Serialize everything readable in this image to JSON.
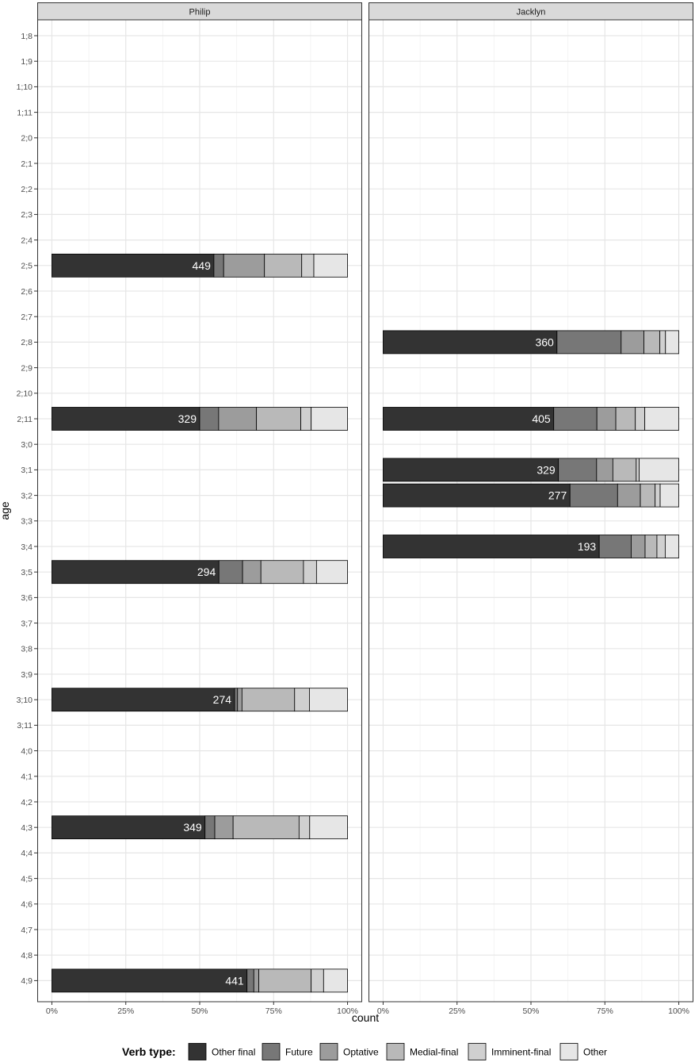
{
  "chart_data": {
    "type": "bar",
    "orientation": "horizontal",
    "stacked": "percent",
    "xlabel": "count",
    "ylabel": "age",
    "x_ticks": [
      "0%",
      "25%",
      "50%",
      "75%",
      "100%"
    ],
    "xlim": [
      0,
      1
    ],
    "ages": [
      "1;8",
      "1;9",
      "1;10",
      "1;11",
      "2;0",
      "2;1",
      "2;2",
      "2;3",
      "2;4",
      "2;5",
      "2;6",
      "2;7",
      "2;8",
      "2;9",
      "2;10",
      "2;11",
      "3;0",
      "3;1",
      "3;2",
      "3;3",
      "3;4",
      "3;5",
      "3;6",
      "3;7",
      "3;8",
      "3;9",
      "3;10",
      "3;11",
      "4;0",
      "4;1",
      "4;2",
      "4;3",
      "4;4",
      "4;5",
      "4;6",
      "4;7",
      "4;8",
      "4;9"
    ],
    "legend": {
      "title": "Verb type:",
      "position": "bottom",
      "items": [
        {
          "name": "Other final",
          "color": "#333333"
        },
        {
          "name": "Future",
          "color": "#777777"
        },
        {
          "name": "Optative",
          "color": "#9c9c9c"
        },
        {
          "name": "Medial-final",
          "color": "#b9b9b9"
        },
        {
          "name": "Imminent-final",
          "color": "#d0d0d0"
        },
        {
          "name": "Other",
          "color": "#e6e6e6"
        }
      ]
    },
    "panels": [
      {
        "name": "Philip",
        "bars": [
          {
            "age": "2;5",
            "count": "449",
            "shares": [
              0.548,
              0.033,
              0.138,
              0.126,
              0.041,
              0.114
            ]
          },
          {
            "age": "2;11",
            "count": "329",
            "shares": [
              0.5,
              0.064,
              0.128,
              0.15,
              0.035,
              0.123
            ]
          },
          {
            "age": "3;5",
            "count": "294",
            "shares": [
              0.565,
              0.08,
              0.062,
              0.144,
              0.044,
              0.105
            ]
          },
          {
            "age": "3;10",
            "count": "274",
            "shares": [
              0.618,
              0.01,
              0.015,
              0.178,
              0.05,
              0.129
            ]
          },
          {
            "age": "4;3",
            "count": "349",
            "shares": [
              0.518,
              0.033,
              0.062,
              0.223,
              0.036,
              0.128
            ]
          },
          {
            "age": "4;9",
            "count": "441",
            "shares": [
              0.66,
              0.023,
              0.017,
              0.177,
              0.042,
              0.081
            ]
          }
        ]
      },
      {
        "name": "Jacklyn",
        "bars": [
          {
            "age": "2;8",
            "count": "360",
            "shares": [
              0.588,
              0.217,
              0.077,
              0.054,
              0.019,
              0.045
            ]
          },
          {
            "age": "2;11",
            "count": "405",
            "shares": [
              0.577,
              0.146,
              0.064,
              0.066,
              0.032,
              0.115
            ]
          },
          {
            "age": "3;1",
            "count": "329",
            "shares": [
              0.593,
              0.129,
              0.055,
              0.079,
              0.01,
              0.134
            ]
          },
          {
            "age": "3;2",
            "count": "277",
            "shares": [
              0.632,
              0.161,
              0.077,
              0.05,
              0.017,
              0.063
            ]
          },
          {
            "age": "3;4",
            "count": "193",
            "shares": [
              0.731,
              0.108,
              0.047,
              0.04,
              0.028,
              0.046
            ]
          }
        ]
      }
    ]
  }
}
